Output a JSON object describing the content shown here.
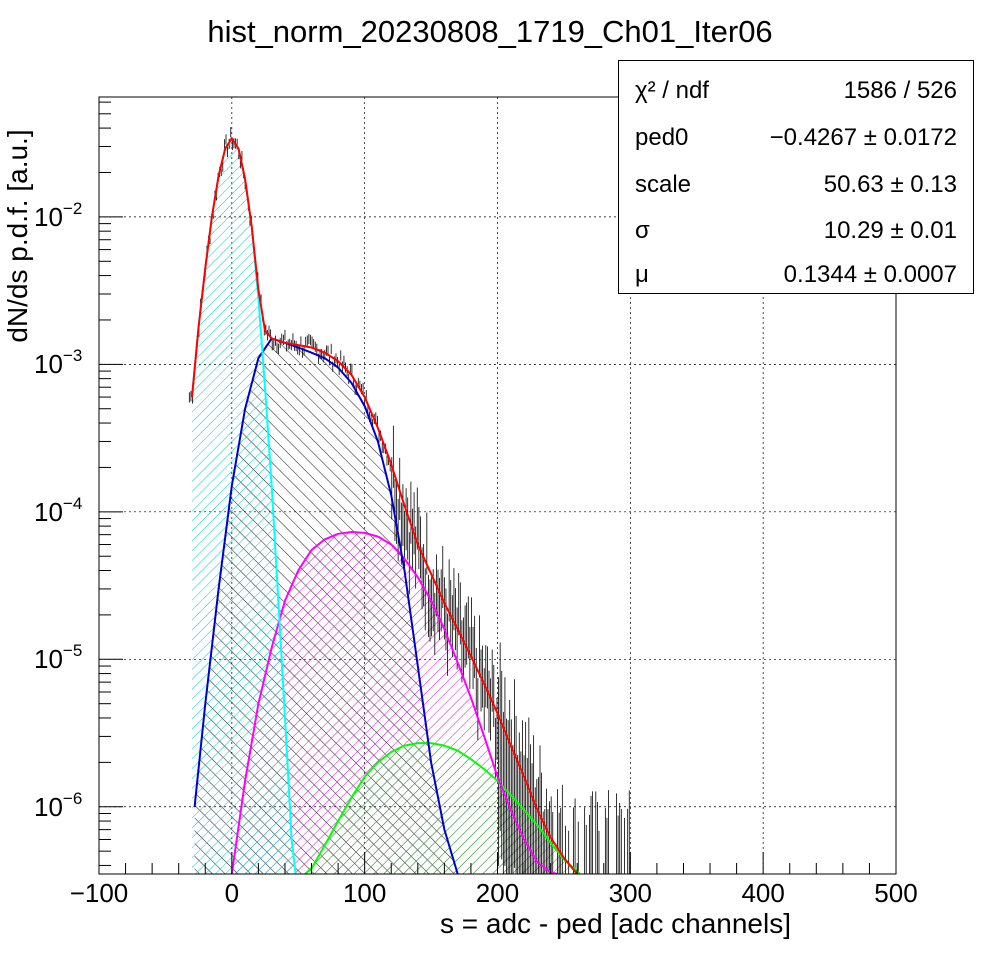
{
  "chart_data": {
    "type": "line",
    "title": "hist_norm_20230808_1719_Ch01_Iter06",
    "xlabel": "s = adc - ped [adc channels]",
    "ylabel": "dN/ds p.d.f. [a.u.]",
    "xlim": [
      -100,
      500
    ],
    "ylim": [
      3.5e-07,
      0.065
    ],
    "yscale": "log",
    "grid": true,
    "x_ticks": [
      -100,
      0,
      100,
      200,
      300,
      400,
      500
    ],
    "x_tick_labels": [
      "−100",
      "0",
      "100",
      "200",
      "300",
      "400",
      "500"
    ],
    "y_ticks": [
      {
        "value": 1e-06,
        "base": "10",
        "exp": "−6"
      },
      {
        "value": 1e-05,
        "base": "10",
        "exp": "−5"
      },
      {
        "value": 0.0001,
        "base": "10",
        "exp": "−4"
      },
      {
        "value": 0.001,
        "base": "10",
        "exp": "−3"
      },
      {
        "value": 0.01,
        "base": "10",
        "exp": "−2"
      }
    ],
    "stats_legend_position": "top-right",
    "stats": [
      {
        "label": "χ² / ndf",
        "value": "1586 / 526"
      },
      {
        "label": "ped0",
        "value": "−0.4267 ± 0.0172"
      },
      {
        "label": "scale",
        "value": "50.63 ± 0.13"
      },
      {
        "label": "σ",
        "value": "10.29 ± 0.01"
      },
      {
        "label": "μ",
        "value": "0.1344 ± 0.0007"
      }
    ],
    "series": [
      {
        "color": "#ff0000",
        "x": [
          -30,
          -25,
          -20,
          -15,
          -10,
          -5,
          0,
          5,
          10,
          15,
          20,
          25,
          30,
          40,
          50,
          60,
          70,
          80,
          90,
          100,
          110,
          120,
          130,
          140,
          150,
          160,
          170,
          180,
          190,
          200,
          210,
          220,
          230,
          240,
          250,
          260
        ],
        "y": [
          0.0006,
          0.0018,
          0.0045,
          0.01,
          0.019,
          0.029,
          0.034,
          0.029,
          0.018,
          0.0085,
          0.0032,
          0.0017,
          0.0015,
          0.0014,
          0.00135,
          0.0013,
          0.0012,
          0.00105,
          0.00085,
          0.0006,
          0.00037,
          0.00021,
          0.00011,
          6e-05,
          3.8e-05,
          2.4e-05,
          1.6e-05,
          1.05e-05,
          6.8e-06,
          4.3e-06,
          2.6e-06,
          1.6e-06,
          9.5e-07,
          6.2e-07,
          4.5e-07,
          3.5e-07
        ]
      },
      {
        "color": "#00ffff",
        "x": [
          -30,
          -25,
          -20,
          -15,
          -10,
          -5,
          0,
          5,
          10,
          15,
          20,
          25,
          30,
          35,
          40,
          45,
          48
        ],
        "y": [
          0.0006,
          0.0018,
          0.0045,
          0.01,
          0.019,
          0.029,
          0.034,
          0.029,
          0.018,
          0.0085,
          0.0028,
          0.0007,
          0.00015,
          2.5e-05,
          4e-06,
          6e-07,
          3.5e-07
        ]
      },
      {
        "color": "#0000cc",
        "x": [
          -28,
          -20,
          -10,
          0,
          10,
          20,
          30,
          40,
          50,
          60,
          70,
          80,
          90,
          100,
          110,
          120,
          130,
          140,
          150,
          160,
          170
        ],
        "y": [
          1e-06,
          5e-06,
          3e-05,
          0.00015,
          0.0005,
          0.0011,
          0.0015,
          0.0014,
          0.0013,
          0.0012,
          0.0011,
          0.00095,
          0.00075,
          0.00052,
          0.0003,
          0.00013,
          4e-05,
          9e-06,
          2e-06,
          7e-07,
          3.5e-07
        ]
      },
      {
        "color": "#ff00ff",
        "x": [
          0,
          10,
          20,
          30,
          40,
          50,
          60,
          70,
          80,
          90,
          100,
          110,
          120,
          130,
          140,
          150,
          160,
          170,
          180,
          190,
          200,
          210,
          220,
          230,
          240,
          245
        ],
        "y": [
          3.5e-07,
          1.5e-06,
          5e-06,
          1.2e-05,
          2.5e-05,
          4e-05,
          5.5e-05,
          6.5e-05,
          7.1e-05,
          7.3e-05,
          7.2e-05,
          6.8e-05,
          6e-05,
          4.8e-05,
          3.6e-05,
          2.5e-05,
          1.6e-05,
          9.5e-06,
          5.5e-06,
          3e-06,
          1.6e-06,
          9.5e-07,
          6e-07,
          4.2e-07,
          3.6e-07,
          3.5e-07
        ]
      },
      {
        "color": "#00ff00",
        "x": [
          55,
          60,
          70,
          80,
          90,
          100,
          110,
          120,
          130,
          140,
          150,
          160,
          170,
          180,
          190,
          200,
          210,
          220,
          230,
          240,
          250,
          262
        ],
        "y": [
          3.5e-07,
          3.8e-07,
          5.5e-07,
          8e-07,
          1.15e-06,
          1.6e-06,
          2e-06,
          2.35e-06,
          2.6e-06,
          2.7e-06,
          2.7e-06,
          2.6e-06,
          2.4e-06,
          2.1e-06,
          1.8e-06,
          1.5e-06,
          1.2e-06,
          9.5e-07,
          7.5e-07,
          5.7e-07,
          4.4e-07,
          3.5e-07
        ]
      }
    ]
  }
}
